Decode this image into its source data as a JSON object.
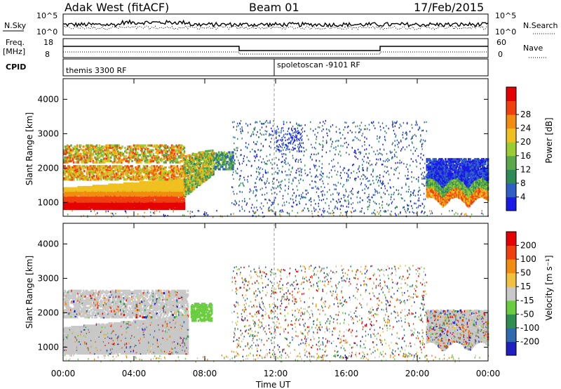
{
  "header": {
    "station": "Adak West (fitACF)",
    "beam": "Beam 01",
    "date": "17/Feb/2015"
  },
  "strips": {
    "nsky_label": "N.Sky",
    "nsky_ticks": [
      "10^5",
      "10^0"
    ],
    "nsearch_label": "N.Search",
    "freq_label_1": "Freq.",
    "freq_label_2": "[MHz]",
    "freq_ticks": [
      "18",
      "8"
    ],
    "nave_label": "Nave",
    "nave_ticks": [
      "60",
      "0"
    ],
    "cpid_label": "CPID",
    "cpid_1": "themis 3300 RF",
    "cpid_2": "spoletoscan -9101 RF"
  },
  "chart_data": [
    {
      "type": "heatmap",
      "name": "power",
      "ylabel": "Slant Range [km]",
      "yticks": [
        "1000",
        "2000",
        "3000",
        "4000"
      ],
      "ylim": [
        600,
        4600
      ],
      "colorbar_label": "Power [dB]",
      "colorbar_ticks": [
        "4",
        "8",
        "12",
        "16",
        "20",
        "24",
        "28"
      ],
      "colors": [
        "#1a1ae6",
        "#2d5fc4",
        "#2e8b57",
        "#5aa84a",
        "#9acd32",
        "#f0c020",
        "#f08c10",
        "#f04010",
        "#e60000"
      ]
    },
    {
      "type": "heatmap",
      "name": "velocity",
      "ylabel": "Slant Range [km]",
      "yticks": [
        "1000",
        "2000",
        "3000",
        "4000"
      ],
      "ylim": [
        600,
        4600
      ],
      "colorbar_label": "Velocity [m s⁻¹]",
      "colorbar_ticks": [
        "200",
        "100",
        "50",
        "15",
        "-15",
        "-50",
        "-100",
        "-200"
      ],
      "colors": [
        "#2020c0",
        "#2f6ab0",
        "#2f8f50",
        "#6acd40",
        "#c8c8c8",
        "#f0c040",
        "#f08c10",
        "#f04010",
        "#e60000"
      ]
    }
  ],
  "xaxis": {
    "ticks": [
      "00:00",
      "04:00",
      "08:00",
      "12:00",
      "16:00",
      "20:00",
      "00:00"
    ],
    "label": "Time UT"
  }
}
